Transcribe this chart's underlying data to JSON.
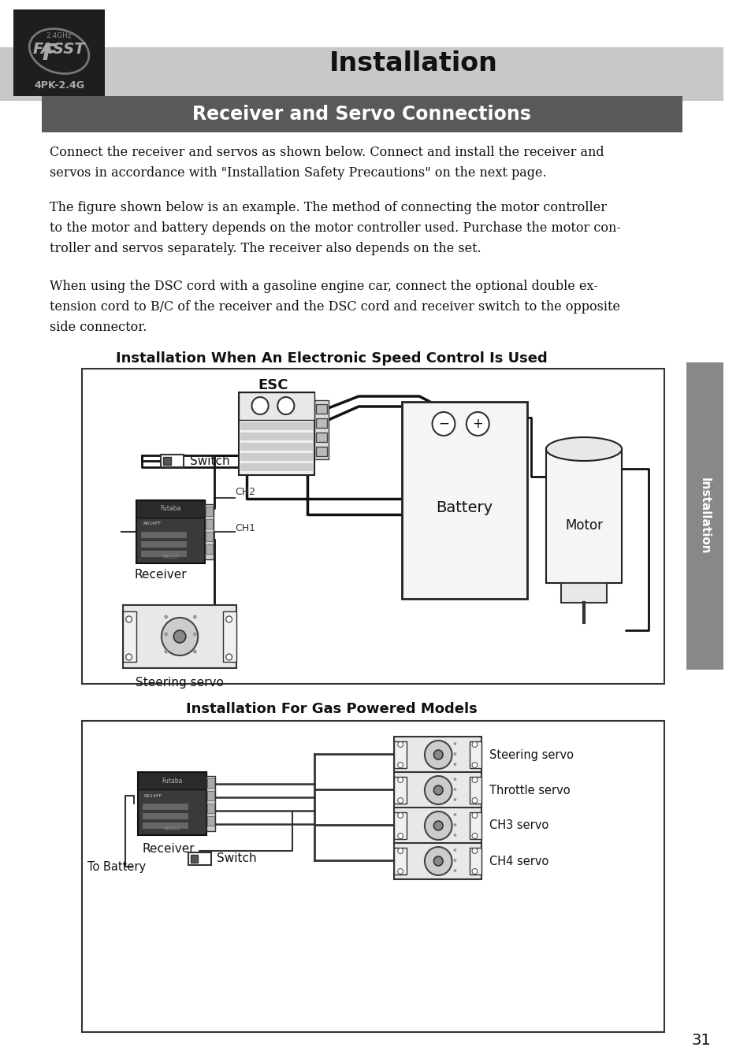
{
  "title": "Installation",
  "subtitle": "Receiver and Servo Connections",
  "para1": "Connect the receiver and servos as shown below. Connect and install the receiver and\nservos in accordance with \"Installation Safety Precautions\" on the next page.",
  "para2": "The figure shown below is an example. The method of connecting the motor controller\nto the motor and battery depends on the motor controller used. Purchase the motor con-\ntroller and servos separately. The receiver also depends on the set.",
  "para3": "When using the DSC cord with a gasoline engine car, connect the optional double ex-\ntension cord to B/C of the receiver and the DSC cord and receiver switch to the opposite\nside connector.",
  "diagram1_title": "Installation When An Electronic Speed Control Is Used",
  "diagram2_title": "Installation For Gas Powered Models",
  "page_number": "31",
  "sidebar_text": "Installation",
  "bg_color": "#ffffff",
  "header_bg": "#c8c8c8",
  "subtitle_bg": "#595959",
  "subtitle_fg": "#ffffff",
  "logo_bg": "#1e1e1e",
  "sidebar_bg": "#888888",
  "text_color": "#111111",
  "diagram_border": "#333333",
  "diagram_bg": "#ffffff"
}
